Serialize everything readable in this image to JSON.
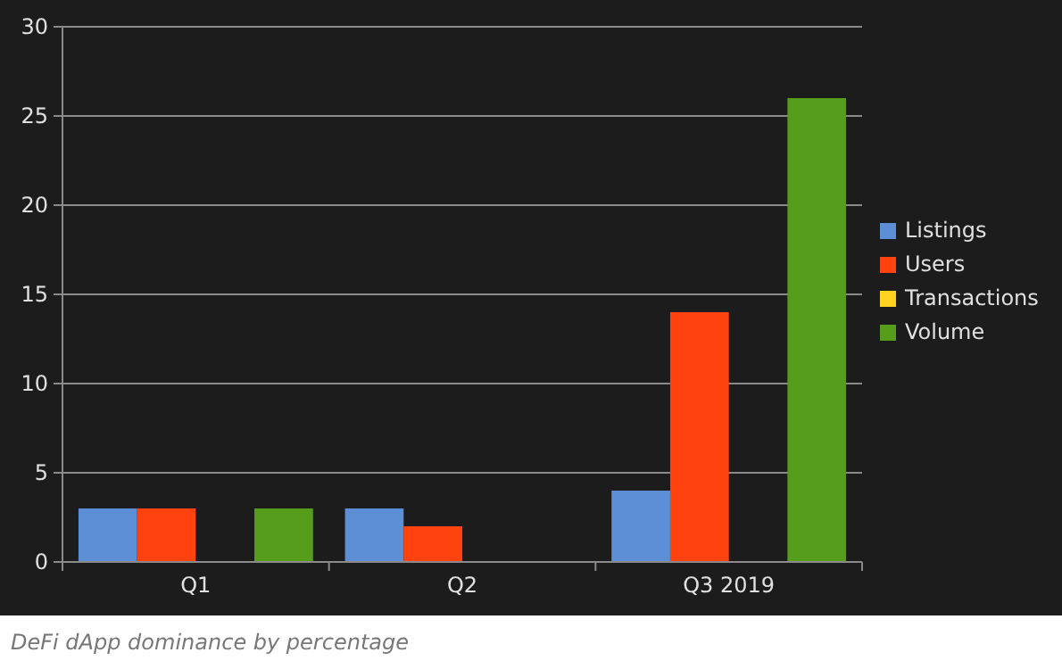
{
  "chart_data": {
    "type": "bar",
    "categories": [
      "Q1",
      "Q2",
      "Q3 2019"
    ],
    "series": [
      {
        "name": "Listings",
        "color": "#5c8fd6",
        "values": [
          3,
          3,
          4
        ]
      },
      {
        "name": "Users",
        "color": "#ff420e",
        "values": [
          3,
          2,
          14
        ]
      },
      {
        "name": "Transactions",
        "color": "#ffd320",
        "values": [
          null,
          null,
          null
        ]
      },
      {
        "name": "Volume",
        "color": "#579d1c",
        "values": [
          3,
          null,
          26
        ]
      }
    ],
    "ylim": [
      0,
      30
    ],
    "yticks": [
      0,
      5,
      10,
      15,
      20,
      25,
      30
    ],
    "grid": "y",
    "legend": "right",
    "annotations": [
      "DeFi dApp dominance by percentage"
    ]
  }
}
